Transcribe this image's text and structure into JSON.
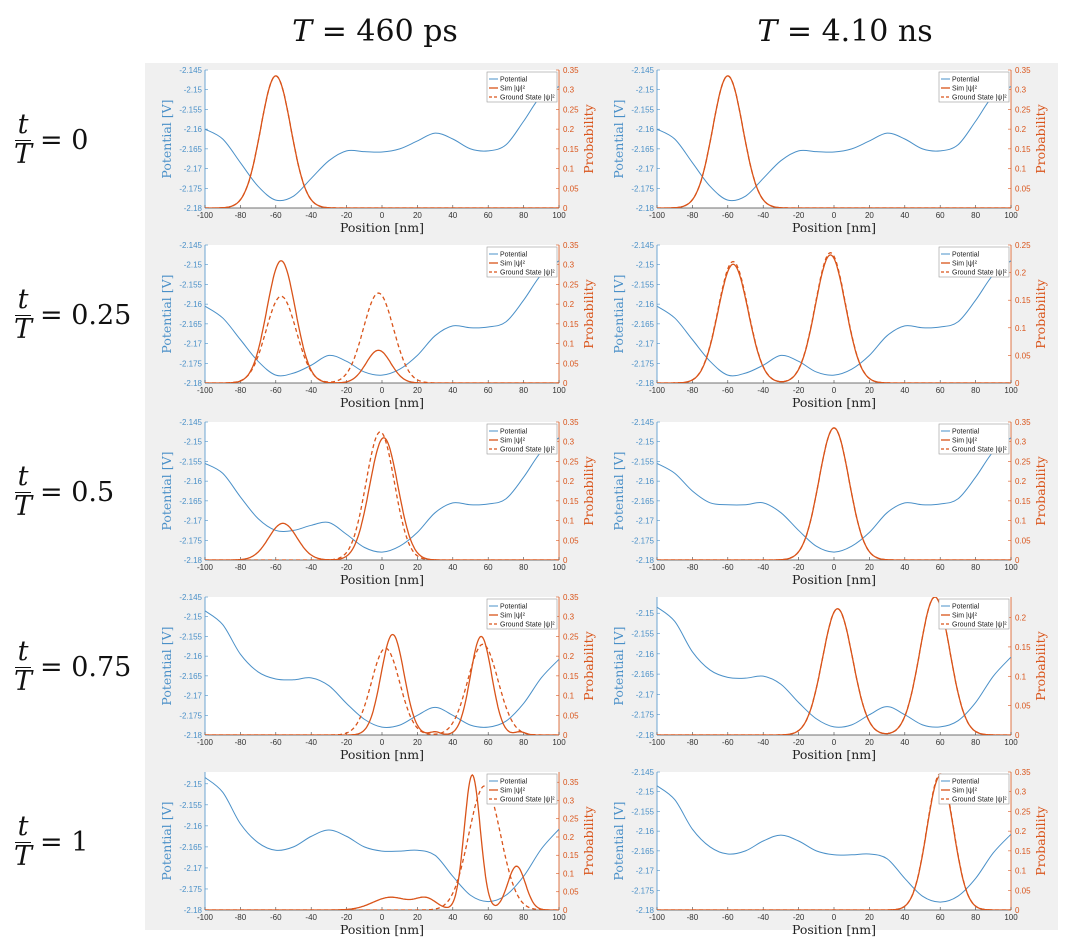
{
  "column_titles": [
    {
      "var": "T",
      "value": "= 460 ps"
    },
    {
      "var": "T",
      "value": "= 4.10 ns"
    }
  ],
  "row_labels": [
    {
      "num": "t",
      "den": "T",
      "value": "= 0"
    },
    {
      "num": "t",
      "den": "T",
      "value": "= 0.25"
    },
    {
      "num": "t",
      "den": "T",
      "value": "= 0.5"
    },
    {
      "num": "t",
      "den": "T",
      "value": "= 0.75"
    },
    {
      "num": "t",
      "den": "T",
      "value": "= 1"
    }
  ],
  "colors": {
    "potential": "#4a90c8",
    "probability": "#d9541a",
    "background": "#f0f0f0"
  },
  "chart_data": {
    "type": "line",
    "xlabel": "Position [nm]",
    "ylabel_left": "Potential [V]",
    "ylabel_right": "Probability",
    "legend": [
      "Potential",
      "Sim |ψ|²",
      "Ground State |ψ|²"
    ],
    "legend_placement": "top-right",
    "xlim": [
      -100,
      100
    ],
    "x_ticks": [
      -100,
      -80,
      -60,
      -40,
      -20,
      0,
      20,
      40,
      60,
      80,
      100
    ],
    "potential_x": [
      -100,
      -90,
      -80,
      -70,
      -60,
      -50,
      -40,
      -30,
      -20,
      -10,
      0,
      10,
      20,
      30,
      40,
      50,
      60,
      70,
      80,
      90,
      100
    ],
    "panels": [
      {
        "row": 0,
        "col": 0,
        "ylim_left": [
          -2.18,
          -2.145
        ],
        "ylim_right": [
          0,
          0.35
        ],
        "yticks_left": [
          -2.18,
          -2.175,
          -2.17,
          -2.165,
          -2.16,
          -2.155,
          -2.15,
          -2.145
        ],
        "yticks_right": [
          0,
          0.05,
          0.1,
          0.15,
          0.2,
          0.25,
          0.3,
          0.35
        ],
        "potential": [
          -2.16,
          -2.1625,
          -2.1685,
          -2.1745,
          -2.178,
          -2.177,
          -2.1725,
          -2.168,
          -2.1655,
          -2.1657,
          -2.1658,
          -2.165,
          -2.163,
          -2.161,
          -2.1625,
          -2.165,
          -2.1655,
          -2.164,
          -2.158,
          -2.1515,
          -2.1492
        ],
        "sim_gaussians": [
          [
            -60,
            8.5,
            0.335
          ]
        ],
        "ground_gaussians": [
          [
            -60,
            8.5,
            0.335
          ]
        ]
      },
      {
        "row": 0,
        "col": 1,
        "ylim_left": [
          -2.18,
          -2.145
        ],
        "ylim_right": [
          0,
          0.35
        ],
        "yticks_left": [
          -2.18,
          -2.175,
          -2.17,
          -2.165,
          -2.16,
          -2.155,
          -2.15,
          -2.145
        ],
        "yticks_right": [
          0,
          0.05,
          0.1,
          0.15,
          0.2,
          0.25,
          0.3,
          0.35
        ],
        "potential": [
          -2.16,
          -2.1625,
          -2.1685,
          -2.1745,
          -2.178,
          -2.177,
          -2.1725,
          -2.168,
          -2.1655,
          -2.1657,
          -2.1658,
          -2.165,
          -2.163,
          -2.161,
          -2.1625,
          -2.165,
          -2.1655,
          -2.164,
          -2.158,
          -2.1515,
          -2.1492
        ],
        "sim_gaussians": [
          [
            -60,
            8.5,
            0.335
          ]
        ],
        "ground_gaussians": [
          [
            -60,
            8.5,
            0.335
          ]
        ]
      },
      {
        "row": 1,
        "col": 0,
        "ylim_left": [
          -2.18,
          -2.145
        ],
        "ylim_right": [
          0,
          0.35
        ],
        "yticks_left": [
          -2.18,
          -2.175,
          -2.17,
          -2.165,
          -2.16,
          -2.155,
          -2.15,
          -2.145
        ],
        "yticks_right": [
          0,
          0.05,
          0.1,
          0.15,
          0.2,
          0.25,
          0.3,
          0.35
        ],
        "potential": [
          -2.1605,
          -2.1635,
          -2.169,
          -2.1745,
          -2.178,
          -2.1775,
          -2.1755,
          -2.173,
          -2.1745,
          -2.1772,
          -2.178,
          -2.1765,
          -2.173,
          -2.168,
          -2.1655,
          -2.166,
          -2.1658,
          -2.1645,
          -2.159,
          -2.1525,
          -2.149
        ],
        "sim_gaussians": [
          [
            -57,
            8,
            0.31
          ],
          [
            -2,
            7,
            0.083
          ]
        ],
        "ground_gaussians": [
          [
            -57,
            8.5,
            0.22
          ],
          [
            -2,
            8.5,
            0.228
          ]
        ]
      },
      {
        "row": 1,
        "col": 1,
        "ylim_left": [
          -2.18,
          -2.145
        ],
        "ylim_right": [
          0,
          0.25
        ],
        "yticks_left": [
          -2.18,
          -2.175,
          -2.17,
          -2.165,
          -2.16,
          -2.155,
          -2.15,
          -2.145
        ],
        "yticks_right": [
          0,
          0.05,
          0.1,
          0.15,
          0.2,
          0.25
        ],
        "potential": [
          -2.1605,
          -2.1635,
          -2.169,
          -2.1745,
          -2.178,
          -2.1775,
          -2.1755,
          -2.173,
          -2.1745,
          -2.1772,
          -2.178,
          -2.1765,
          -2.173,
          -2.168,
          -2.1655,
          -2.166,
          -2.1658,
          -2.1645,
          -2.159,
          -2.1525,
          -2.149
        ],
        "sim_gaussians": [
          [
            -57,
            8.5,
            0.215
          ],
          [
            -2,
            8.5,
            0.232
          ]
        ],
        "ground_gaussians": [
          [
            -57,
            8.5,
            0.22
          ],
          [
            -2,
            8.5,
            0.236
          ]
        ]
      },
      {
        "row": 2,
        "col": 0,
        "ylim_left": [
          -2.18,
          -2.145
        ],
        "ylim_right": [
          0,
          0.35
        ],
        "yticks_left": [
          -2.18,
          -2.175,
          -2.17,
          -2.165,
          -2.16,
          -2.155,
          -2.15,
          -2.145
        ],
        "yticks_right": [
          0,
          0.05,
          0.1,
          0.15,
          0.2,
          0.25,
          0.3,
          0.35
        ],
        "potential": [
          -2.1555,
          -2.158,
          -2.164,
          -2.1695,
          -2.1725,
          -2.1725,
          -2.1712,
          -2.1705,
          -2.1735,
          -2.1768,
          -2.178,
          -2.1765,
          -2.173,
          -2.168,
          -2.1655,
          -2.166,
          -2.1658,
          -2.1645,
          -2.159,
          -2.1525,
          -2.149
        ],
        "sim_gaussians": [
          [
            -56,
            8,
            0.093
          ],
          [
            1,
            8,
            0.31
          ]
        ],
        "ground_gaussians": [
          [
            -1,
            8,
            0.325
          ]
        ]
      },
      {
        "row": 2,
        "col": 1,
        "ylim_left": [
          -2.18,
          -2.145
        ],
        "ylim_right": [
          0,
          0.35
        ],
        "yticks_left": [
          -2.18,
          -2.175,
          -2.17,
          -2.165,
          -2.16,
          -2.155,
          -2.15,
          -2.145
        ],
        "yticks_right": [
          0,
          0.05,
          0.1,
          0.15,
          0.2,
          0.25,
          0.3,
          0.35
        ],
        "potential": [
          -2.1555,
          -2.158,
          -2.1625,
          -2.1655,
          -2.166,
          -2.166,
          -2.1655,
          -2.168,
          -2.1725,
          -2.1765,
          -2.178,
          -2.1765,
          -2.173,
          -2.168,
          -2.1655,
          -2.166,
          -2.1658,
          -2.1645,
          -2.159,
          -2.1525,
          -2.149
        ],
        "sim_gaussians": [
          [
            0,
            8.5,
            0.335
          ]
        ],
        "ground_gaussians": [
          [
            0,
            8.5,
            0.335
          ]
        ]
      },
      {
        "row": 3,
        "col": 0,
        "ylim_left": [
          -2.18,
          -2.145
        ],
        "ylim_right": [
          0,
          0.35
        ],
        "yticks_left": [
          -2.18,
          -2.175,
          -2.17,
          -2.165,
          -2.16,
          -2.155,
          -2.15,
          -2.145
        ],
        "yticks_right": [
          0,
          0.05,
          0.1,
          0.15,
          0.2,
          0.25,
          0.3,
          0.35
        ],
        "potential": [
          -2.1485,
          -2.152,
          -2.1595,
          -2.164,
          -2.1658,
          -2.166,
          -2.1655,
          -2.1675,
          -2.172,
          -2.176,
          -2.178,
          -2.1775,
          -2.175,
          -2.173,
          -2.175,
          -2.1775,
          -2.178,
          -2.1765,
          -2.172,
          -2.1655,
          -2.1608
        ],
        "sim_gaussians": [
          [
            6,
            6.5,
            0.255
          ],
          [
            56,
            6,
            0.25
          ],
          [
            30,
            3,
            0.008
          ],
          [
            78,
            3,
            0.008
          ]
        ],
        "ground_gaussians": [
          [
            2,
            8,
            0.22
          ],
          [
            57,
            8.5,
            0.23
          ]
        ]
      },
      {
        "row": 3,
        "col": 1,
        "ylim_left": [
          -2.18,
          -2.146
        ],
        "ylim_right": [
          0,
          0.235
        ],
        "yticks_left": [
          -2.18,
          -2.175,
          -2.17,
          -2.165,
          -2.16,
          -2.155,
          -2.15
        ],
        "yticks_right": [
          0,
          0.05,
          0.1,
          0.15,
          0.2
        ],
        "potential": [
          -2.1485,
          -2.152,
          -2.1595,
          -2.164,
          -2.1658,
          -2.166,
          -2.1655,
          -2.1675,
          -2.172,
          -2.176,
          -2.178,
          -2.1775,
          -2.175,
          -2.173,
          -2.175,
          -2.1775,
          -2.178,
          -2.1765,
          -2.172,
          -2.1655,
          -2.1608
        ],
        "sim_gaussians": [
          [
            2,
            8.5,
            0.215
          ],
          [
            57,
            8.5,
            0.235
          ]
        ],
        "ground_gaussians": [
          [
            2,
            8.5,
            0.215
          ],
          [
            57,
            8.5,
            0.235
          ]
        ]
      },
      {
        "row": 4,
        "col": 0,
        "ylim_left": [
          -2.18,
          -2.1472
        ],
        "ylim_right": [
          0,
          0.378
        ],
        "yticks_left": [
          -2.18,
          -2.175,
          -2.17,
          -2.165,
          -2.16,
          -2.155,
          -2.15
        ],
        "yticks_right": [
          0,
          0.05,
          0.1,
          0.15,
          0.2,
          0.25,
          0.3,
          0.35
        ],
        "potential": [
          -2.1485,
          -2.152,
          -2.1595,
          -2.164,
          -2.1658,
          -2.165,
          -2.1625,
          -2.161,
          -2.1625,
          -2.165,
          -2.166,
          -2.166,
          -2.1658,
          -2.167,
          -2.172,
          -2.1765,
          -2.178,
          -2.1765,
          -2.172,
          -2.1655,
          -2.1608
        ],
        "sim_gaussians": [
          [
            51,
            4.5,
            0.37
          ],
          [
            76,
            5,
            0.12
          ],
          [
            5,
            10,
            0.035
          ],
          [
            25,
            6,
            0.03
          ]
        ],
        "ground_gaussians": [
          [
            58,
            9,
            0.34
          ]
        ]
      },
      {
        "row": 4,
        "col": 1,
        "ylim_left": [
          -2.18,
          -2.145
        ],
        "ylim_right": [
          0,
          0.35
        ],
        "yticks_left": [
          -2.18,
          -2.175,
          -2.17,
          -2.165,
          -2.16,
          -2.155,
          -2.15,
          -2.145
        ],
        "yticks_right": [
          0,
          0.05,
          0.1,
          0.15,
          0.2,
          0.25,
          0.3,
          0.35
        ],
        "potential": [
          -2.1485,
          -2.152,
          -2.1595,
          -2.164,
          -2.1658,
          -2.165,
          -2.1625,
          -2.161,
          -2.1625,
          -2.165,
          -2.166,
          -2.166,
          -2.1658,
          -2.167,
          -2.172,
          -2.1765,
          -2.178,
          -2.1765,
          -2.172,
          -2.1655,
          -2.1608
        ],
        "sim_gaussians": [
          [
            60,
            7.5,
            0.34
          ]
        ],
        "ground_gaussians": [
          [
            60,
            7.5,
            0.345
          ]
        ]
      }
    ]
  }
}
